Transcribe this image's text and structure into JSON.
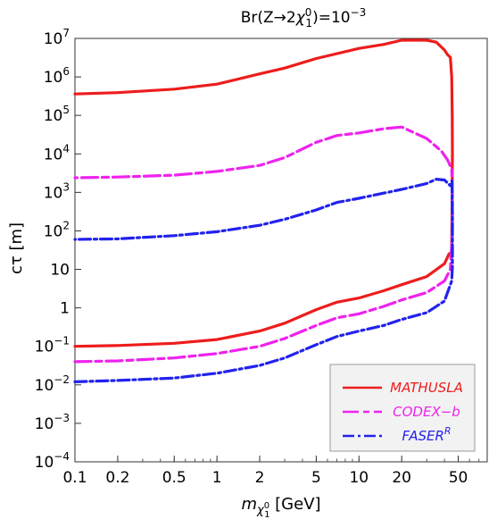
{
  "chart_data": {
    "type": "line",
    "title": {
      "prefix": "Br(Z→2",
      "chi": "χ",
      "chi_sub": "1",
      "chi_sup": "0",
      "mid": ")=10",
      "exp": "−3"
    },
    "xlabel": {
      "m": "m",
      "chi": "χ",
      "chi_sub": "1",
      "chi_sup": "0",
      "unit": " [GeV]"
    },
    "ylabel": "cτ [m]",
    "xscale": "log",
    "yscale": "log",
    "xlim": [
      0.1,
      80
    ],
    "ylim": [
      0.0001,
      10000000
    ],
    "x_ticks": [
      {
        "value": 0.1,
        "label": "0.1"
      },
      {
        "value": 0.2,
        "label": "0.2"
      },
      {
        "value": 0.5,
        "label": "0.5"
      },
      {
        "value": 1,
        "label": "1"
      },
      {
        "value": 2,
        "label": "2"
      },
      {
        "value": 5,
        "label": "5"
      },
      {
        "value": 10,
        "label": "10"
      },
      {
        "value": 20,
        "label": "20"
      },
      {
        "value": 50,
        "label": "50"
      }
    ],
    "y_ticks": [
      {
        "value": 0.0001,
        "base": "10",
        "exp": "−4"
      },
      {
        "value": 0.001,
        "base": "10",
        "exp": "−3"
      },
      {
        "value": 0.01,
        "base": "10",
        "exp": "−2"
      },
      {
        "value": 0.1,
        "base": "10",
        "exp": "−1"
      },
      {
        "value": 1,
        "base": "1",
        "exp": ""
      },
      {
        "value": 10,
        "base": "10",
        "exp": ""
      },
      {
        "value": 100,
        "base": "10",
        "exp": "2"
      },
      {
        "value": 1000,
        "base": "10",
        "exp": "3"
      },
      {
        "value": 10000,
        "base": "10",
        "exp": "4"
      },
      {
        "value": 100000,
        "base": "10",
        "exp": "5"
      },
      {
        "value": 1000000,
        "base": "10",
        "exp": "6"
      },
      {
        "value": 10000000,
        "base": "10",
        "exp": "7"
      }
    ],
    "grid": false,
    "legend_position": "bottom-right",
    "series": [
      {
        "name": "MATHUSLA",
        "legend_main": "MATHUSLA",
        "legend_sup": "",
        "color": "#ee1c1c",
        "dash": "solid",
        "points": [
          [
            0.1,
            0.1
          ],
          [
            0.2,
            0.105
          ],
          [
            0.5,
            0.12
          ],
          [
            1,
            0.15
          ],
          [
            2,
            0.25
          ],
          [
            3,
            0.4
          ],
          [
            5,
            0.9
          ],
          [
            7,
            1.4
          ],
          [
            10,
            1.8
          ],
          [
            15,
            2.8
          ],
          [
            20,
            4
          ],
          [
            30,
            6.5
          ],
          [
            40,
            14
          ],
          [
            43,
            25
          ],
          [
            45,
            28
          ],
          [
            45.5,
            10000
          ],
          [
            45.4,
            100000
          ],
          [
            45,
            1000000
          ],
          [
            44,
            3200000
          ],
          [
            42,
            3800000
          ],
          [
            40,
            5000000
          ],
          [
            35,
            8000000
          ],
          [
            30,
            9000000
          ],
          [
            20,
            9000000
          ],
          [
            15,
            7000000
          ],
          [
            10,
            5500000
          ],
          [
            5,
            3000000
          ],
          [
            3,
            1700000
          ],
          [
            2,
            1200000
          ],
          [
            1,
            650000
          ],
          [
            0.5,
            480000
          ],
          [
            0.2,
            390000
          ],
          [
            0.1,
            360000
          ]
        ]
      },
      {
        "name": "CODEX-b",
        "legend_main": "CODEX−b",
        "legend_sup": "",
        "color": "#ee22ee",
        "dash": "long-short",
        "points": [
          [
            0.1,
            0.04
          ],
          [
            0.2,
            0.042
          ],
          [
            0.5,
            0.05
          ],
          [
            1,
            0.065
          ],
          [
            2,
            0.1
          ],
          [
            3,
            0.16
          ],
          [
            5,
            0.35
          ],
          [
            7,
            0.55
          ],
          [
            10,
            0.7
          ],
          [
            15,
            1.1
          ],
          [
            20,
            1.6
          ],
          [
            30,
            2.5
          ],
          [
            40,
            5
          ],
          [
            44,
            10
          ],
          [
            45.5,
            100
          ],
          [
            45.5,
            1000
          ],
          [
            45,
            4000
          ],
          [
            42,
            7000
          ],
          [
            38,
            12000
          ],
          [
            30,
            25000
          ],
          [
            20,
            50000
          ],
          [
            15,
            45000
          ],
          [
            10,
            35000
          ],
          [
            7,
            30000
          ],
          [
            5,
            20000
          ],
          [
            3,
            8000
          ],
          [
            2,
            5000
          ],
          [
            1,
            3500
          ],
          [
            0.5,
            2800
          ],
          [
            0.2,
            2500
          ],
          [
            0.1,
            2400
          ]
        ]
      },
      {
        "name": "FASER",
        "legend_main": "FASER",
        "legend_sup": "R",
        "color": "#2222ee",
        "dash": "dash-dot",
        "points": [
          [
            0.1,
            0.012
          ],
          [
            0.2,
            0.013
          ],
          [
            0.5,
            0.015
          ],
          [
            1,
            0.02
          ],
          [
            2,
            0.032
          ],
          [
            3,
            0.05
          ],
          [
            5,
            0.11
          ],
          [
            7,
            0.18
          ],
          [
            10,
            0.25
          ],
          [
            15,
            0.35
          ],
          [
            20,
            0.5
          ],
          [
            30,
            0.75
          ],
          [
            40,
            1.5
          ],
          [
            45,
            5
          ],
          [
            45.5,
            12
          ],
          [
            45.5,
            50
          ],
          [
            45.5,
            300
          ],
          [
            45.2,
            2000
          ],
          [
            44,
            1500
          ],
          [
            40,
            2100
          ],
          [
            35,
            2200
          ],
          [
            30,
            1700
          ],
          [
            20,
            1200
          ],
          [
            10,
            700
          ],
          [
            7,
            550
          ],
          [
            5,
            350
          ],
          [
            3,
            200
          ],
          [
            2,
            140
          ],
          [
            1,
            95
          ],
          [
            0.5,
            75
          ],
          [
            0.2,
            62
          ],
          [
            0.1,
            60
          ]
        ]
      }
    ]
  }
}
